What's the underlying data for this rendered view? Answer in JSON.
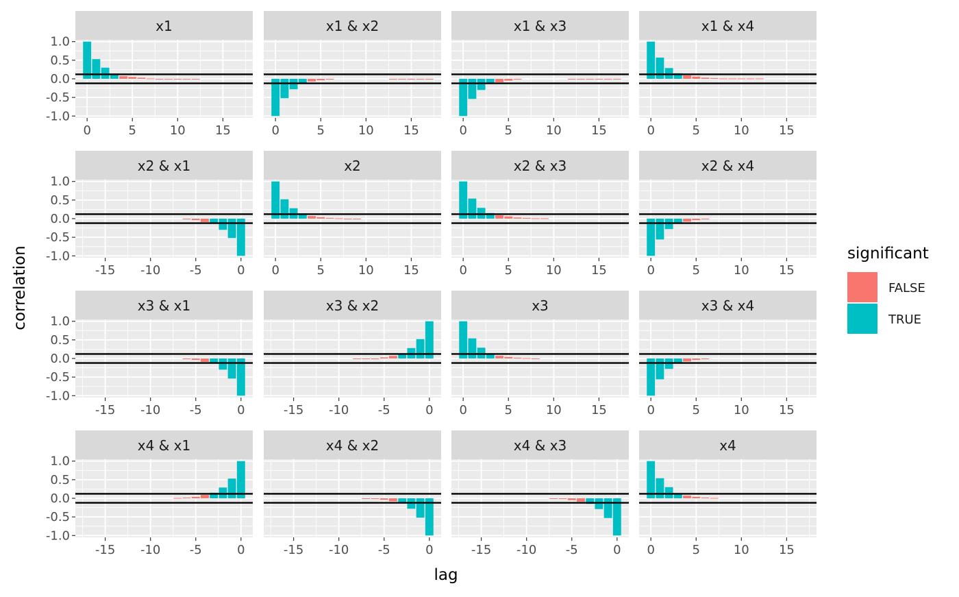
{
  "chart_data": {
    "type": "bar",
    "xlabel": "lag",
    "ylabel": "correlation",
    "ylim": [
      -1.05,
      1.05
    ],
    "y_ticks": [
      1.0,
      0.5,
      0.0,
      -0.5,
      -1.0
    ],
    "y_tick_labels": [
      "1.0",
      "0.5",
      "0.0",
      "-0.5",
      "-1.0"
    ],
    "confidence_bounds": [
      0.12,
      -0.12
    ],
    "grid": true,
    "legend": {
      "title": "significant",
      "position": "right",
      "entries": [
        {
          "label": "FALSE",
          "color": "#F8766D"
        },
        {
          "label": "TRUE",
          "color": "#00BFC4"
        }
      ]
    },
    "colors": {
      "false": "#F8766D",
      "true": "#00BFC4",
      "panel_bg": "#EBEBEB",
      "strip_bg": "#D9D9D9",
      "grid": "#FFFFFF",
      "bound_line": "#000000"
    },
    "positive_lag_axis": {
      "xlim": [
        -1.3,
        18.3
      ],
      "ticks": [
        0,
        5,
        10,
        15
      ],
      "tick_labels": [
        "0",
        "5",
        "10",
        "15"
      ]
    },
    "negative_lag_axis": {
      "xlim": [
        -18.3,
        1.3
      ],
      "ticks": [
        -15,
        -10,
        -5,
        0
      ],
      "tick_labels": [
        "-15",
        "-10",
        "-5",
        "0"
      ]
    },
    "panels": [
      {
        "title": "x1",
        "row": 0,
        "col": 0,
        "axis": "positive",
        "lags": [
          0,
          1,
          2,
          3,
          4,
          5,
          6,
          7,
          8,
          9,
          10,
          11,
          12
        ],
        "values": [
          1.0,
          0.53,
          0.3,
          0.14,
          0.07,
          0.05,
          0.03,
          0.01,
          0.0,
          0.0,
          0.0,
          0.0,
          0.0
        ]
      },
      {
        "title": "x1 & x2",
        "row": 0,
        "col": 1,
        "axis": "positive",
        "lags": [
          0,
          1,
          2,
          3,
          4,
          5,
          6,
          13,
          14,
          15,
          16,
          17
        ],
        "values": [
          -1.0,
          -0.52,
          -0.28,
          -0.13,
          -0.07,
          -0.04,
          -0.02,
          -0.01,
          -0.01,
          -0.01,
          -0.01,
          -0.01
        ]
      },
      {
        "title": "x1 & x3",
        "row": 0,
        "col": 2,
        "axis": "positive",
        "lags": [
          0,
          1,
          2,
          3,
          4,
          5,
          6,
          12,
          13,
          14,
          15,
          16,
          17
        ],
        "values": [
          -1.0,
          -0.54,
          -0.3,
          -0.14,
          -0.09,
          -0.05,
          -0.02,
          -0.01,
          -0.01,
          -0.01,
          -0.01,
          -0.01,
          -0.01
        ]
      },
      {
        "title": "x1 & x4",
        "row": 0,
        "col": 3,
        "axis": "positive",
        "lags": [
          0,
          1,
          2,
          3,
          4,
          5,
          6,
          7,
          8,
          9,
          10,
          11,
          12
        ],
        "values": [
          1.0,
          0.57,
          0.29,
          0.15,
          0.09,
          0.06,
          0.03,
          0.02,
          0.01,
          0.01,
          0.01,
          0.01,
          0.01
        ]
      },
      {
        "title": "x2 & x1",
        "row": 1,
        "col": 0,
        "axis": "negative",
        "lags": [
          -6,
          -5,
          -4,
          -3,
          -2,
          -1,
          0
        ],
        "values": [
          -0.02,
          -0.04,
          -0.09,
          -0.14,
          -0.3,
          -0.52,
          -1.0
        ]
      },
      {
        "title": "x2",
        "row": 1,
        "col": 1,
        "axis": "positive",
        "lags": [
          0,
          1,
          2,
          3,
          4,
          5,
          6,
          7,
          8,
          9
        ],
        "values": [
          1.0,
          0.52,
          0.28,
          0.14,
          0.07,
          0.04,
          0.02,
          0.01,
          0.0,
          0.0
        ]
      },
      {
        "title": "x2 & x3",
        "row": 1,
        "col": 2,
        "axis": "positive",
        "lags": [
          0,
          1,
          2,
          3,
          4,
          5,
          6,
          7,
          8,
          9
        ],
        "values": [
          1.0,
          0.54,
          0.29,
          0.15,
          0.09,
          0.06,
          0.03,
          0.02,
          0.01,
          0.01
        ]
      },
      {
        "title": "x2 & x4",
        "row": 1,
        "col": 3,
        "axis": "positive",
        "lags": [
          0,
          1,
          2,
          3,
          4,
          5,
          6
        ],
        "values": [
          -1.0,
          -0.56,
          -0.28,
          -0.14,
          -0.08,
          -0.04,
          -0.02
        ]
      },
      {
        "title": "x3 & x1",
        "row": 2,
        "col": 0,
        "axis": "negative",
        "lags": [
          -6,
          -5,
          -4,
          -3,
          -2,
          -1,
          0
        ],
        "values": [
          -0.02,
          -0.04,
          -0.09,
          -0.14,
          -0.3,
          -0.54,
          -1.0
        ]
      },
      {
        "title": "x3 & x2",
        "row": 2,
        "col": 1,
        "axis": "negative",
        "lags": [
          -8,
          -7,
          -6,
          -5,
          -4,
          -3,
          -2,
          -1,
          0
        ],
        "values": [
          -0.01,
          -0.01,
          -0.02,
          0.03,
          0.07,
          0.14,
          0.28,
          0.52,
          1.0
        ]
      },
      {
        "title": "x3",
        "row": 2,
        "col": 2,
        "axis": "positive",
        "lags": [
          0,
          1,
          2,
          3,
          4,
          5,
          6,
          7,
          8
        ],
        "values": [
          1.0,
          0.54,
          0.29,
          0.14,
          0.07,
          0.04,
          0.02,
          0.01,
          0.0
        ]
      },
      {
        "title": "x3 & x4",
        "row": 2,
        "col": 3,
        "axis": "positive",
        "lags": [
          0,
          1,
          2,
          3,
          4,
          5,
          6
        ],
        "values": [
          -1.0,
          -0.56,
          -0.28,
          -0.14,
          -0.08,
          -0.04,
          -0.02
        ]
      },
      {
        "title": "x4 & x1",
        "row": 3,
        "col": 0,
        "axis": "negative",
        "lags": [
          -7,
          -6,
          -5,
          -4,
          -3,
          -2,
          -1,
          0
        ],
        "values": [
          0.01,
          0.02,
          0.04,
          0.09,
          0.15,
          0.29,
          0.53,
          1.0
        ]
      },
      {
        "title": "x4 & x2",
        "row": 3,
        "col": 1,
        "axis": "negative",
        "lags": [
          -7,
          -6,
          -5,
          -4,
          -3,
          -2,
          -1,
          0
        ],
        "values": [
          -0.01,
          -0.02,
          -0.04,
          -0.08,
          -0.14,
          -0.28,
          -0.52,
          -1.0
        ]
      },
      {
        "title": "x4 & x3",
        "row": 3,
        "col": 2,
        "axis": "negative",
        "lags": [
          -7,
          -6,
          -5,
          -4,
          -3,
          -2,
          -1,
          0
        ],
        "values": [
          -0.01,
          -0.02,
          -0.05,
          -0.09,
          -0.15,
          -0.29,
          -0.53,
          -1.0
        ]
      },
      {
        "title": "x4",
        "row": 3,
        "col": 3,
        "axis": "positive",
        "lags": [
          0,
          1,
          2,
          3,
          4,
          5,
          6,
          7
        ],
        "values": [
          1.0,
          0.54,
          0.3,
          0.14,
          0.07,
          0.04,
          0.02,
          0.01
        ]
      }
    ]
  }
}
